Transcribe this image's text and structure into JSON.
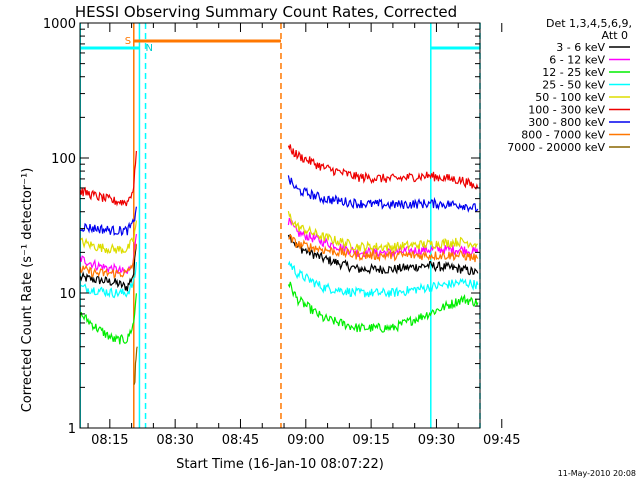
{
  "chart_data": {
    "type": "line",
    "title": "HESSI Observing Summary Count Rates, Corrected",
    "xlabel": "Start Time (16-Jan-10 08:07:22)",
    "ylabel": "Corrected Count Rate (s⁻¹ detector⁻¹)",
    "yscale": "log",
    "ylim": [
      1,
      1000
    ],
    "xlim_minutes": [
      8.15,
      100.0
    ],
    "x_ticks": [
      {
        "label": "08:15",
        "minute": 15
      },
      {
        "label": "08:30",
        "minute": 30
      },
      {
        "label": "08:45",
        "minute": 45
      },
      {
        "label": "09:00",
        "minute": 60
      },
      {
        "label": "09:15",
        "minute": 75
      },
      {
        "label": "09:30",
        "minute": 90
      },
      {
        "label": "09:45",
        "minute": 105
      }
    ],
    "y_ticks": [
      {
        "label": "1",
        "value": 1
      },
      {
        "label": "10",
        "value": 10
      },
      {
        "label": "100",
        "value": 100
      },
      {
        "label": "1000",
        "value": 1000
      }
    ],
    "legend": {
      "header_line1": "Det 1,3,4,5,6,9,",
      "header_line2": "Att 0",
      "placement": "top-right-outside"
    },
    "series": [
      {
        "name": "3 - 6 keV",
        "color": "#000000",
        "x": [
          8.2,
          12,
          16,
          19,
          20.5,
          21.3,
          56,
          58,
          64,
          72,
          80,
          88,
          96,
          99.5
        ],
        "y": [
          13,
          12.5,
          12,
          11,
          14,
          30,
          28,
          22,
          18,
          15,
          15,
          16,
          15,
          14
        ]
      },
      {
        "name": "6 - 12 keV",
        "color": "#ff00ff",
        "x": [
          8.2,
          12,
          16,
          19,
          20.5,
          21.3,
          56,
          58,
          64,
          72,
          80,
          88,
          96,
          99.5
        ],
        "y": [
          18,
          16,
          15,
          14,
          18,
          35,
          34,
          28,
          24,
          20,
          20,
          21,
          21,
          20
        ]
      },
      {
        "name": "12 - 25 keV",
        "color": "#00ee00",
        "x": [
          8.2,
          12,
          16,
          19,
          20.5,
          21.3,
          56,
          58,
          64,
          72,
          80,
          88,
          96,
          99.5
        ],
        "y": [
          7,
          5.5,
          4.5,
          4.5,
          6,
          12,
          12,
          9,
          6.5,
          5.5,
          5.5,
          7,
          9,
          8.5
        ]
      },
      {
        "name": "25 - 50 keV",
        "color": "#00ffff",
        "x": [
          8.2,
          12,
          16,
          19,
          20.5,
          21.3,
          56,
          58,
          64,
          72,
          80,
          88,
          96,
          99.5
        ],
        "y": [
          11,
          10.5,
          10,
          10,
          12,
          18,
          17,
          14,
          11,
          10,
          10,
          11,
          12,
          11.5
        ]
      },
      {
        "name": "50 - 100 keV",
        "color": "#dddd00",
        "x": [
          8.2,
          12,
          16,
          19,
          20.5,
          21.3,
          56,
          58,
          64,
          72,
          80,
          88,
          96,
          99.5
        ],
        "y": [
          24,
          22,
          21,
          21,
          25,
          38,
          38,
          31,
          26,
          22,
          22,
          23,
          24,
          23
        ]
      },
      {
        "name": "100 - 300 keV",
        "color": "#ee0000",
        "x": [
          8.2,
          12,
          16,
          19,
          20.5,
          21.3,
          56,
          58,
          64,
          72,
          80,
          88,
          96,
          99.5
        ],
        "y": [
          57,
          52,
          48,
          47,
          60,
          150,
          120,
          105,
          85,
          72,
          70,
          74,
          68,
          60
        ]
      },
      {
        "name": "300 - 800 keV",
        "color": "#0000ee",
        "x": [
          8.2,
          12,
          16,
          19,
          20.5,
          21.3,
          56,
          58,
          64,
          72,
          80,
          88,
          96,
          99.5
        ],
        "y": [
          31,
          30,
          29,
          29,
          33,
          50,
          70,
          58,
          50,
          46,
          45,
          46,
          45,
          42
        ]
      },
      {
        "name": "800 - 7000 keV",
        "color": "#ff7700",
        "x": [
          8.2,
          12,
          16,
          19,
          20.5,
          21.3,
          56,
          58,
          64,
          72,
          80,
          88,
          96,
          99.5
        ],
        "y": [
          15,
          14,
          14,
          14,
          17,
          28,
          26,
          23,
          21,
          19,
          19,
          19,
          19,
          18
        ]
      },
      {
        "name": "7000 - 20000 keV",
        "color": "#886600",
        "x": [
          20.6,
          20.9,
          21.1,
          21.3
        ],
        "y": [
          2.0,
          2.8,
          3.4,
          4.0
        ]
      }
    ],
    "annotations": {
      "saa_label": "S",
      "night_label": "N",
      "timestamp": "11-May-2010 20:08",
      "cyan_bars": [
        [
          8.2,
          21.8
        ],
        [
          88.7,
          100.0
        ]
      ],
      "orange_bar": [
        20.5,
        54.3
      ],
      "vlines": [
        {
          "minute": 8.2,
          "color": "#00ffff",
          "style": "solid"
        },
        {
          "minute": 20.5,
          "color": "#ff7700",
          "style": "solid"
        },
        {
          "minute": 21.8,
          "color": "#00ffff",
          "style": "solid"
        },
        {
          "minute": 23.2,
          "color": "#00ffff",
          "style": "dashed"
        },
        {
          "minute": 54.3,
          "color": "#ff7700",
          "style": "dashed"
        },
        {
          "minute": 88.7,
          "color": "#00ffff",
          "style": "solid"
        },
        {
          "minute": 100.0,
          "color": "#00ffff",
          "style": "dashed"
        }
      ]
    }
  }
}
